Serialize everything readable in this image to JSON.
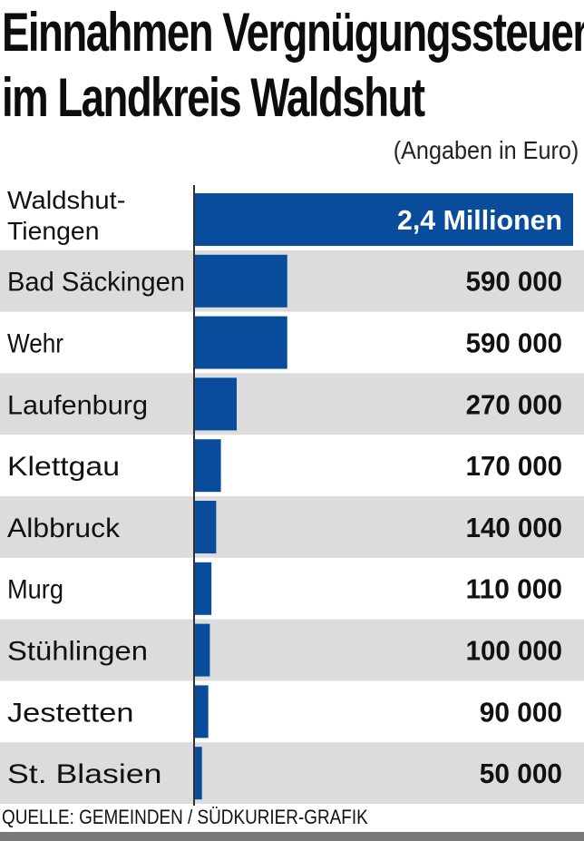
{
  "title_lines": [
    "Einnahmen Vergnügungssteuer",
    "im Landkreis Waldshut"
  ],
  "unit_note": "(Angaben in Euro)",
  "source": "QUELLE: GEMEINDEN / SÜDKURIER-GRAFIK",
  "colors": {
    "bar": "#0a4c9c",
    "stripe": "#dcdcdc",
    "label_on_bar": "#ffffff",
    "axis_line": "#333333"
  },
  "chart_data": {
    "type": "bar",
    "orientation": "horizontal",
    "title": "Einnahmen Vergnügungssteuer im Landkreis Waldshut",
    "unit": "(Angaben in Euro)",
    "xlim": [
      0,
      2400000
    ],
    "categories": [
      "Waldshut-Tiengen",
      "Bad Säckingen",
      "Wehr",
      "Laufenburg",
      "Klettgau",
      "Albbruck",
      "Murg",
      "Stühlingen",
      "Jestetten",
      "St. Blasien"
    ],
    "category_label_lines": [
      [
        "Waldshut-",
        "Tiengen"
      ],
      [
        "Bad Säckingen"
      ],
      [
        "Wehr"
      ],
      [
        "Laufenburg"
      ],
      [
        "Klettgau"
      ],
      [
        "Albbruck"
      ],
      [
        "Murg"
      ],
      [
        "Stühlingen"
      ],
      [
        "Jestetten"
      ],
      [
        "St. Blasien"
      ]
    ],
    "values": [
      2400000,
      590000,
      590000,
      270000,
      170000,
      140000,
      110000,
      100000,
      90000,
      50000
    ],
    "value_labels": [
      "2,4 Millionen",
      "590 000",
      "590 000",
      "270 000",
      "170 000",
      "140 000",
      "110 000",
      "100 000",
      "90 000",
      "50 000"
    ]
  }
}
